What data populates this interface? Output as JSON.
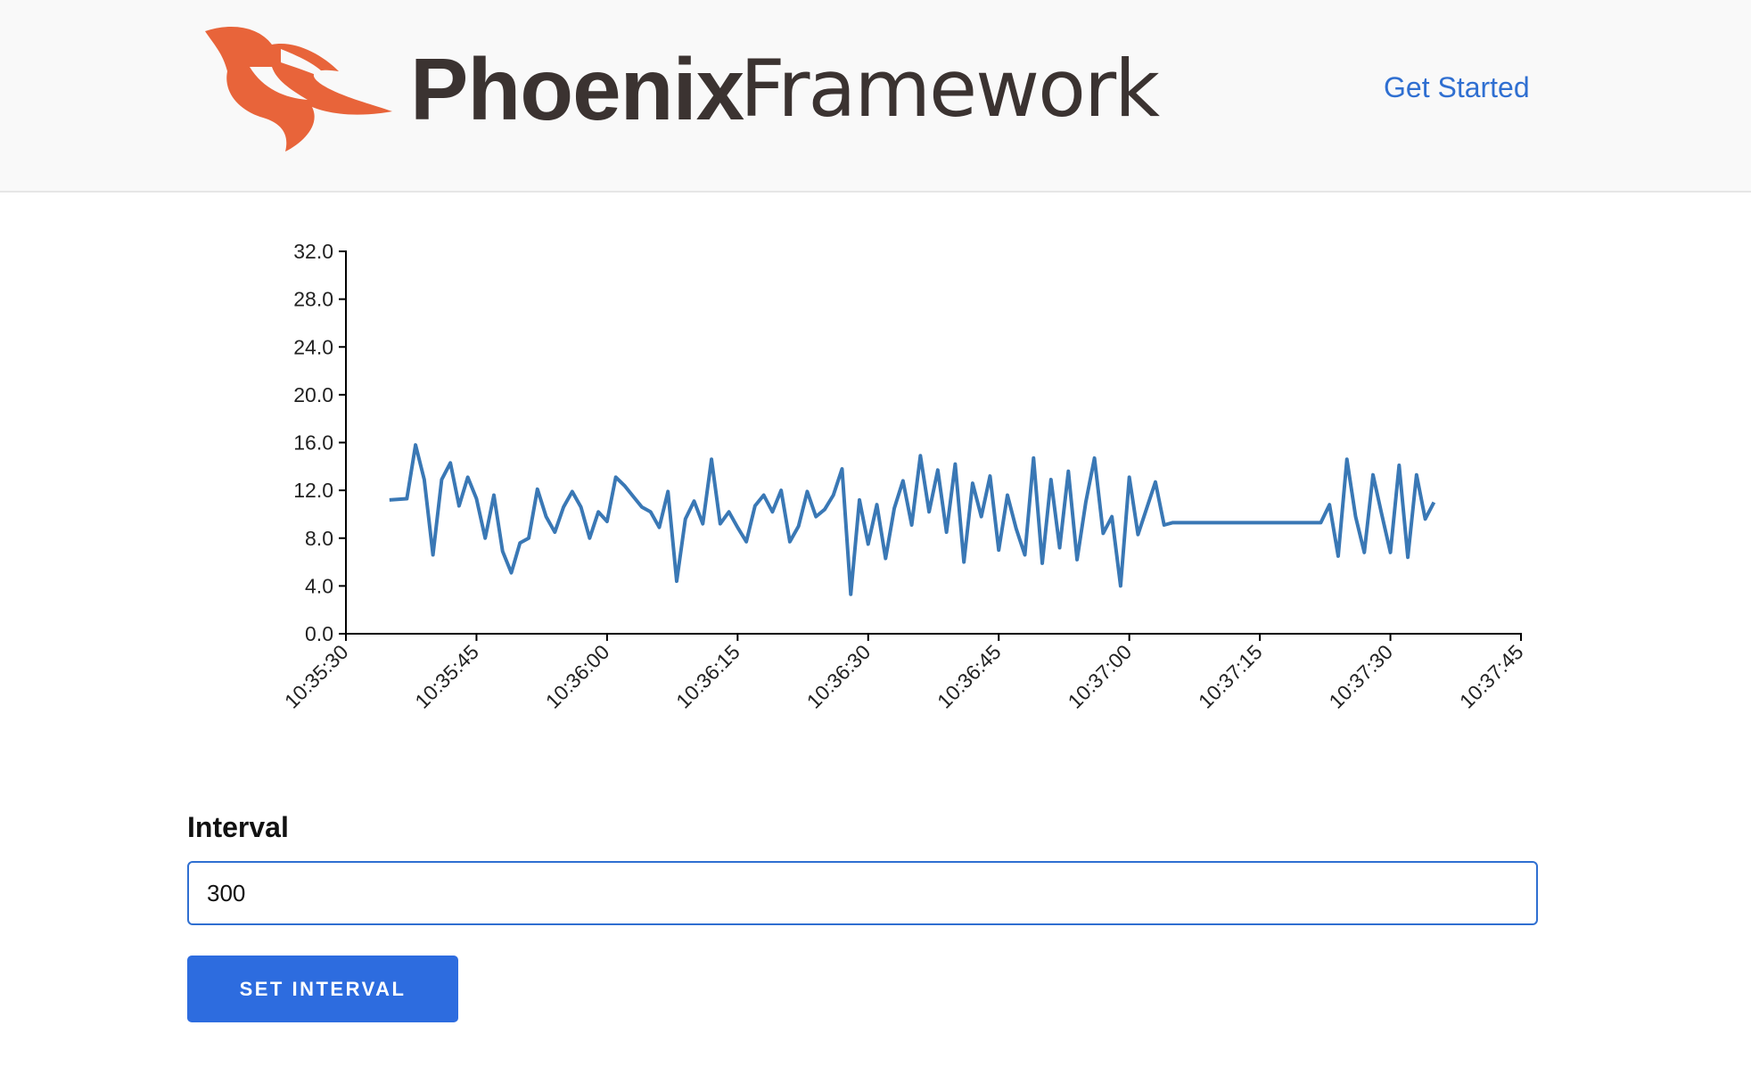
{
  "header": {
    "brand_bold": "Phoenix",
    "brand_light": "Framework",
    "nav_link": "Get Started"
  },
  "chart_data": {
    "type": "line",
    "x": [
      "10:35:35",
      "10:35:37",
      "10:35:38",
      "10:35:39",
      "10:35:40",
      "10:35:41",
      "10:35:42",
      "10:35:43",
      "10:35:44",
      "10:35:45",
      "10:35:46",
      "10:35:47",
      "10:35:48",
      "10:35:49",
      "10:35:50",
      "10:35:51",
      "10:35:52",
      "10:35:53",
      "10:35:54",
      "10:35:55",
      "10:35:56",
      "10:35:57",
      "10:35:58",
      "10:35:59",
      "10:36:00",
      "10:36:01",
      "10:36:02",
      "10:36:03",
      "10:36:04",
      "10:36:05",
      "10:36:06",
      "10:36:07",
      "10:36:08",
      "10:36:09",
      "10:36:10",
      "10:36:11",
      "10:36:12",
      "10:36:13",
      "10:36:14",
      "10:36:15",
      "10:36:16",
      "10:36:17",
      "10:36:18",
      "10:36:19",
      "10:36:20",
      "10:36:21",
      "10:36:22",
      "10:36:23",
      "10:36:24",
      "10:36:25",
      "10:36:26",
      "10:36:27",
      "10:36:28",
      "10:36:29",
      "10:36:30",
      "10:36:31",
      "10:36:32",
      "10:36:33",
      "10:36:34",
      "10:36:35",
      "10:36:36",
      "10:36:37",
      "10:36:38",
      "10:36:39",
      "10:36:40",
      "10:36:41",
      "10:36:42",
      "10:36:43",
      "10:36:44",
      "10:36:45",
      "10:36:46",
      "10:36:47",
      "10:36:48",
      "10:36:49",
      "10:36:50",
      "10:36:51",
      "10:36:52",
      "10:36:53",
      "10:36:54",
      "10:36:55",
      "10:36:56",
      "10:36:57",
      "10:36:58",
      "10:36:59",
      "10:37:00",
      "10:37:01",
      "10:37:02",
      "10:37:03",
      "10:37:04",
      "10:37:05",
      "10:37:22",
      "10:37:23",
      "10:37:24",
      "10:37:25",
      "10:37:26",
      "10:37:27",
      "10:37:28",
      "10:37:29",
      "10:37:30",
      "10:37:31",
      "10:37:32",
      "10:37:33",
      "10:37:34",
      "10:37:35"
    ],
    "series": [
      {
        "color": "#3a78b5",
        "values": [
          11.2,
          11.3,
          15.8,
          12.9,
          6.6,
          12.9,
          14.3,
          10.7,
          13.1,
          11.3,
          8.0,
          11.6,
          6.9,
          5.1,
          7.6,
          8.0,
          12.1,
          9.8,
          8.5,
          10.6,
          11.9,
          10.6,
          8.0,
          10.2,
          9.4,
          13.1,
          12.4,
          11.5,
          10.6,
          10.2,
          8.9,
          11.9,
          4.4,
          9.6,
          11.1,
          9.2,
          14.6,
          9.2,
          10.2,
          8.9,
          7.7,
          10.7,
          11.6,
          10.2,
          12.0,
          7.7,
          9.0,
          11.9,
          9.8,
          10.4,
          11.6,
          13.8,
          3.3,
          11.2,
          7.5,
          10.8,
          6.3,
          10.5,
          12.8,
          9.1,
          14.9,
          10.2,
          13.7,
          8.5,
          14.2,
          6.0,
          12.6,
          9.8,
          13.2,
          7.0,
          11.6,
          8.8,
          6.6,
          14.7,
          5.9,
          12.9,
          7.2,
          13.6,
          6.2,
          11.0,
          14.7,
          8.4,
          9.8,
          4.0,
          13.1,
          8.3,
          10.5,
          12.7,
          9.1,
          9.3,
          9.3,
          10.8,
          6.5,
          14.6,
          9.8,
          6.8,
          13.3,
          10.0,
          6.8,
          14.1,
          6.4,
          13.3,
          9.6,
          11.0
        ]
      }
    ],
    "xlim": [
      "10:35:30",
      "10:37:45"
    ],
    "xticks": [
      "10:35:30",
      "10:35:45",
      "10:36:00",
      "10:36:15",
      "10:36:30",
      "10:36:45",
      "10:37:00",
      "10:37:15",
      "10:37:30",
      "10:37:45"
    ],
    "ylim": [
      0,
      32
    ],
    "yticks": [
      {
        "value": 0,
        "label": "0.0"
      },
      {
        "value": 4,
        "label": "4.0"
      },
      {
        "value": 8,
        "label": "8.0"
      },
      {
        "value": 12,
        "label": "12.0"
      },
      {
        "value": 16,
        "label": "16.0"
      },
      {
        "value": 20,
        "label": "20.0"
      },
      {
        "value": 24,
        "label": "24.0"
      },
      {
        "value": 28,
        "label": "28.0"
      },
      {
        "value": 32,
        "label": "32.0"
      }
    ]
  },
  "form": {
    "label": "Interval",
    "input_value": "300",
    "button": "SET INTERVAL"
  }
}
